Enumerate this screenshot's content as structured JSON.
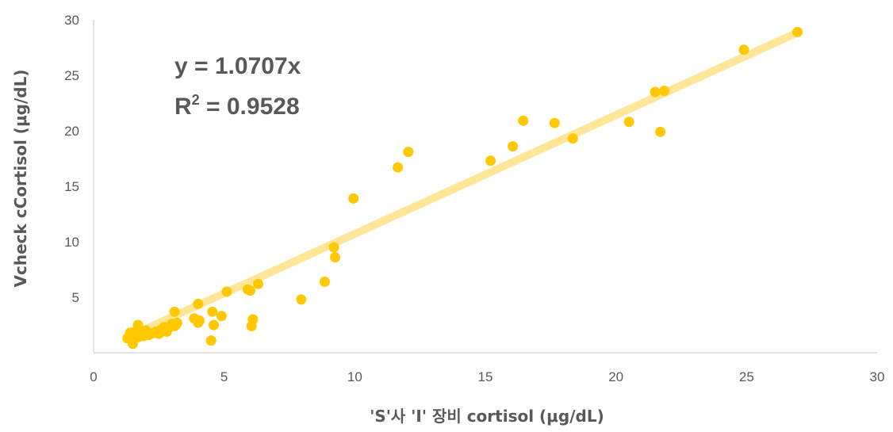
{
  "chart_data": {
    "type": "scatter",
    "title": "",
    "xlabel": "'S'사 'I' 장비 cortisol (μg/dL)",
    "ylabel": "Vcheck cCortisol (μg/dL)",
    "xlim": [
      0,
      30
    ],
    "ylim": [
      0,
      30
    ],
    "x_ticks": [
      "0",
      "5",
      "10",
      "15",
      "20",
      "25",
      "30"
    ],
    "y_ticks": [
      "5",
      "10",
      "15",
      "20",
      "25",
      "30"
    ],
    "grid": false,
    "legend": "none",
    "colors": {
      "points": "#FFC800",
      "trendline": "#FFE699",
      "text": "#595959",
      "axis": "#D9D9D9"
    },
    "annotations": {
      "equation": "y = 1.0707x",
      "r2_prefix": "R",
      "r2_sup": "2",
      "r2_suffix": " = 0.9528"
    },
    "trendline": {
      "slope": 1.0707,
      "intercept": 0,
      "x_range": [
        1.3,
        27
      ]
    },
    "series": [
      {
        "points": [
          [
            1.3,
            1.3
          ],
          [
            1.4,
            1.8
          ],
          [
            1.45,
            1.5
          ],
          [
            1.5,
            1.2
          ],
          [
            1.55,
            1.6
          ],
          [
            1.5,
            0.8
          ],
          [
            1.6,
            1.9
          ],
          [
            1.7,
            1.4
          ],
          [
            1.7,
            2.5
          ],
          [
            1.8,
            1.7
          ],
          [
            1.9,
            1.5
          ],
          [
            2.0,
            2.0
          ],
          [
            2.1,
            1.6
          ],
          [
            2.2,
            1.7
          ],
          [
            2.3,
            1.8
          ],
          [
            2.4,
            1.9
          ],
          [
            2.5,
            1.7
          ],
          [
            2.6,
            2.1
          ],
          [
            2.7,
            2.3
          ],
          [
            2.8,
            1.9
          ],
          [
            2.9,
            2.3
          ],
          [
            3.0,
            2.6
          ],
          [
            3.1,
            2.4
          ],
          [
            3.2,
            2.7
          ],
          [
            3.15,
            2.5
          ],
          [
            3.1,
            3.7
          ],
          [
            3.85,
            3.1
          ],
          [
            4.0,
            2.7
          ],
          [
            4.05,
            2.9
          ],
          [
            4.0,
            4.4
          ],
          [
            4.5,
            1.1
          ],
          [
            4.55,
            3.7
          ],
          [
            4.6,
            2.5
          ],
          [
            4.9,
            3.3
          ],
          [
            5.1,
            5.5
          ],
          [
            5.9,
            5.7
          ],
          [
            6.0,
            5.6
          ],
          [
            6.05,
            2.4
          ],
          [
            6.1,
            3.0
          ],
          [
            6.3,
            6.2
          ],
          [
            7.95,
            4.8
          ],
          [
            8.85,
            6.4
          ],
          [
            9.2,
            9.5
          ],
          [
            9.25,
            8.6
          ],
          [
            9.95,
            13.9
          ],
          [
            11.65,
            16.7
          ],
          [
            12.05,
            18.1
          ],
          [
            15.2,
            17.3
          ],
          [
            16.05,
            18.6
          ],
          [
            16.45,
            20.9
          ],
          [
            17.65,
            20.7
          ],
          [
            18.35,
            19.3
          ],
          [
            20.5,
            20.8
          ],
          [
            21.5,
            23.5
          ],
          [
            21.7,
            19.9
          ],
          [
            21.85,
            23.6
          ],
          [
            24.9,
            27.3
          ],
          [
            26.95,
            28.9
          ]
        ]
      }
    ]
  }
}
